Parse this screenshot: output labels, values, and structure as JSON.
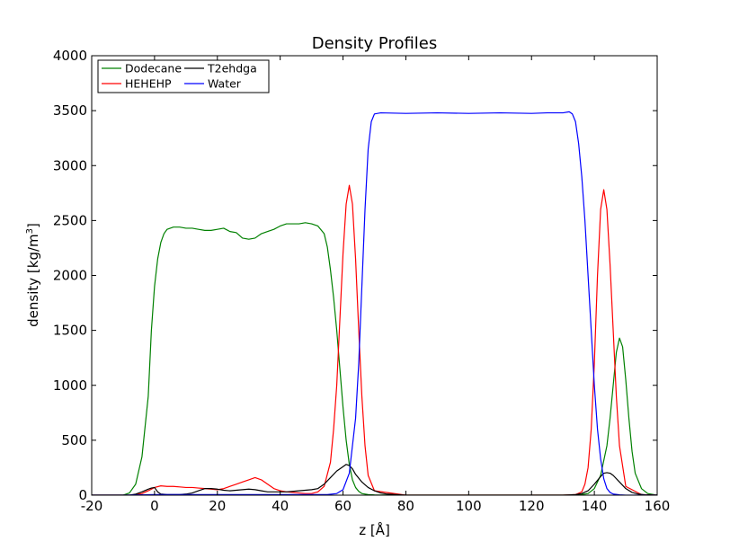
{
  "chart_data": {
    "type": "line",
    "title": "Density Profiles",
    "xlabel": "z [Å]",
    "ylabel_main": "density [kg/m",
    "ylabel_sup": "3",
    "ylabel_end": "]",
    "xlim": [
      -20,
      160
    ],
    "ylim": [
      0,
      4000
    ],
    "xticks": [
      -20,
      0,
      20,
      40,
      60,
      80,
      100,
      120,
      140,
      160
    ],
    "yticks": [
      0,
      500,
      1000,
      1500,
      2000,
      2500,
      3000,
      3500,
      4000
    ],
    "grid": false,
    "legend_placement": "top-left",
    "series": [
      {
        "name": "Dodecane",
        "color": "#008000",
        "x": [
          -20,
          -10,
          -8,
          -6,
          -4,
          -2,
          -1,
          0,
          1,
          2,
          3,
          4,
          6,
          8,
          10,
          12,
          14,
          16,
          18,
          20,
          22,
          24,
          26,
          28,
          30,
          32,
          34,
          36,
          38,
          40,
          42,
          44,
          46,
          48,
          50,
          52,
          54,
          55,
          56,
          57,
          58,
          59,
          60,
          61,
          62,
          63,
          64,
          65,
          66,
          68,
          70,
          80,
          100,
          120,
          130,
          135,
          138,
          140,
          142,
          144,
          145,
          146,
          147,
          148,
          149,
          150,
          151,
          152,
          153,
          155,
          157,
          160
        ],
        "y": [
          0,
          0,
          20,
          100,
          350,
          900,
          1500,
          1900,
          2150,
          2300,
          2380,
          2420,
          2440,
          2440,
          2430,
          2430,
          2420,
          2410,
          2410,
          2420,
          2430,
          2400,
          2390,
          2340,
          2330,
          2340,
          2380,
          2400,
          2420,
          2450,
          2470,
          2470,
          2470,
          2480,
          2470,
          2450,
          2380,
          2260,
          2050,
          1800,
          1500,
          1150,
          800,
          500,
          280,
          140,
          70,
          35,
          15,
          5,
          2,
          0,
          0,
          0,
          0,
          2,
          15,
          60,
          180,
          450,
          700,
          1000,
          1300,
          1430,
          1350,
          1050,
          700,
          400,
          200,
          60,
          15,
          0
        ]
      },
      {
        "name": "HEHEHP",
        "color": "#ff0000",
        "x": [
          -20,
          -8,
          -6,
          -4,
          -2,
          0,
          2,
          4,
          6,
          8,
          10,
          12,
          14,
          16,
          18,
          20,
          22,
          24,
          26,
          28,
          30,
          32,
          34,
          36,
          38,
          40,
          42,
          44,
          46,
          48,
          50,
          52,
          54,
          56,
          57,
          58,
          59,
          60,
          61,
          62,
          63,
          64,
          65,
          66,
          67,
          68,
          70,
          80,
          100,
          120,
          130,
          134,
          136,
          137,
          138,
          139,
          140,
          141,
          142,
          143,
          144,
          145,
          146,
          147,
          148,
          150,
          155,
          160
        ],
        "y": [
          0,
          0,
          5,
          15,
          40,
          70,
          85,
          80,
          80,
          75,
          70,
          70,
          65,
          60,
          55,
          50,
          60,
          80,
          100,
          120,
          140,
          160,
          140,
          100,
          60,
          40,
          30,
          25,
          20,
          15,
          15,
          30,
          80,
          300,
          600,
          1000,
          1600,
          2200,
          2650,
          2820,
          2650,
          2150,
          1500,
          900,
          450,
          180,
          40,
          0,
          0,
          0,
          0,
          5,
          30,
          100,
          250,
          600,
          1200,
          2000,
          2600,
          2780,
          2600,
          2100,
          1500,
          900,
          450,
          80,
          5,
          0
        ]
      },
      {
        "name": "T2ehdga",
        "color": "#000000",
        "x": [
          -20,
          -8,
          -6,
          -4,
          -2,
          -1,
          0,
          1,
          2,
          4,
          8,
          10,
          12,
          14,
          16,
          18,
          20,
          22,
          24,
          26,
          28,
          30,
          32,
          34,
          36,
          38,
          40,
          42,
          44,
          46,
          48,
          50,
          52,
          54,
          56,
          58,
          60,
          61,
          62,
          63,
          64,
          66,
          68,
          70,
          72,
          74,
          80,
          100,
          120,
          130,
          134,
          136,
          138,
          140,
          142,
          143,
          144,
          145,
          146,
          148,
          150,
          152,
          154,
          156,
          160
        ],
        "y": [
          0,
          0,
          10,
          30,
          55,
          65,
          70,
          30,
          10,
          5,
          5,
          10,
          20,
          40,
          60,
          60,
          55,
          45,
          40,
          45,
          50,
          55,
          50,
          40,
          30,
          30,
          30,
          30,
          35,
          40,
          45,
          50,
          60,
          100,
          160,
          220,
          260,
          280,
          270,
          240,
          190,
          120,
          70,
          40,
          20,
          10,
          0,
          0,
          0,
          0,
          5,
          15,
          40,
          100,
          170,
          200,
          205,
          200,
          180,
          120,
          60,
          25,
          10,
          3,
          0
        ]
      },
      {
        "name": "Water",
        "color": "#0000ff",
        "x": [
          -20,
          -10,
          0,
          20,
          40,
          55,
          58,
          60,
          62,
          64,
          65,
          66,
          67,
          68,
          69,
          70,
          72,
          80,
          90,
          100,
          110,
          120,
          125,
          130,
          132,
          133,
          134,
          135,
          136,
          137,
          138,
          139,
          140,
          141,
          142,
          143,
          144,
          145,
          146,
          148,
          150,
          160
        ],
        "y": [
          0,
          0,
          5,
          5,
          5,
          5,
          15,
          50,
          200,
          700,
          1200,
          1900,
          2600,
          3150,
          3400,
          3470,
          3480,
          3475,
          3480,
          3475,
          3480,
          3475,
          3480,
          3480,
          3490,
          3470,
          3400,
          3200,
          2900,
          2500,
          2000,
          1500,
          1000,
          600,
          330,
          150,
          60,
          25,
          10,
          3,
          0,
          0
        ]
      }
    ]
  }
}
